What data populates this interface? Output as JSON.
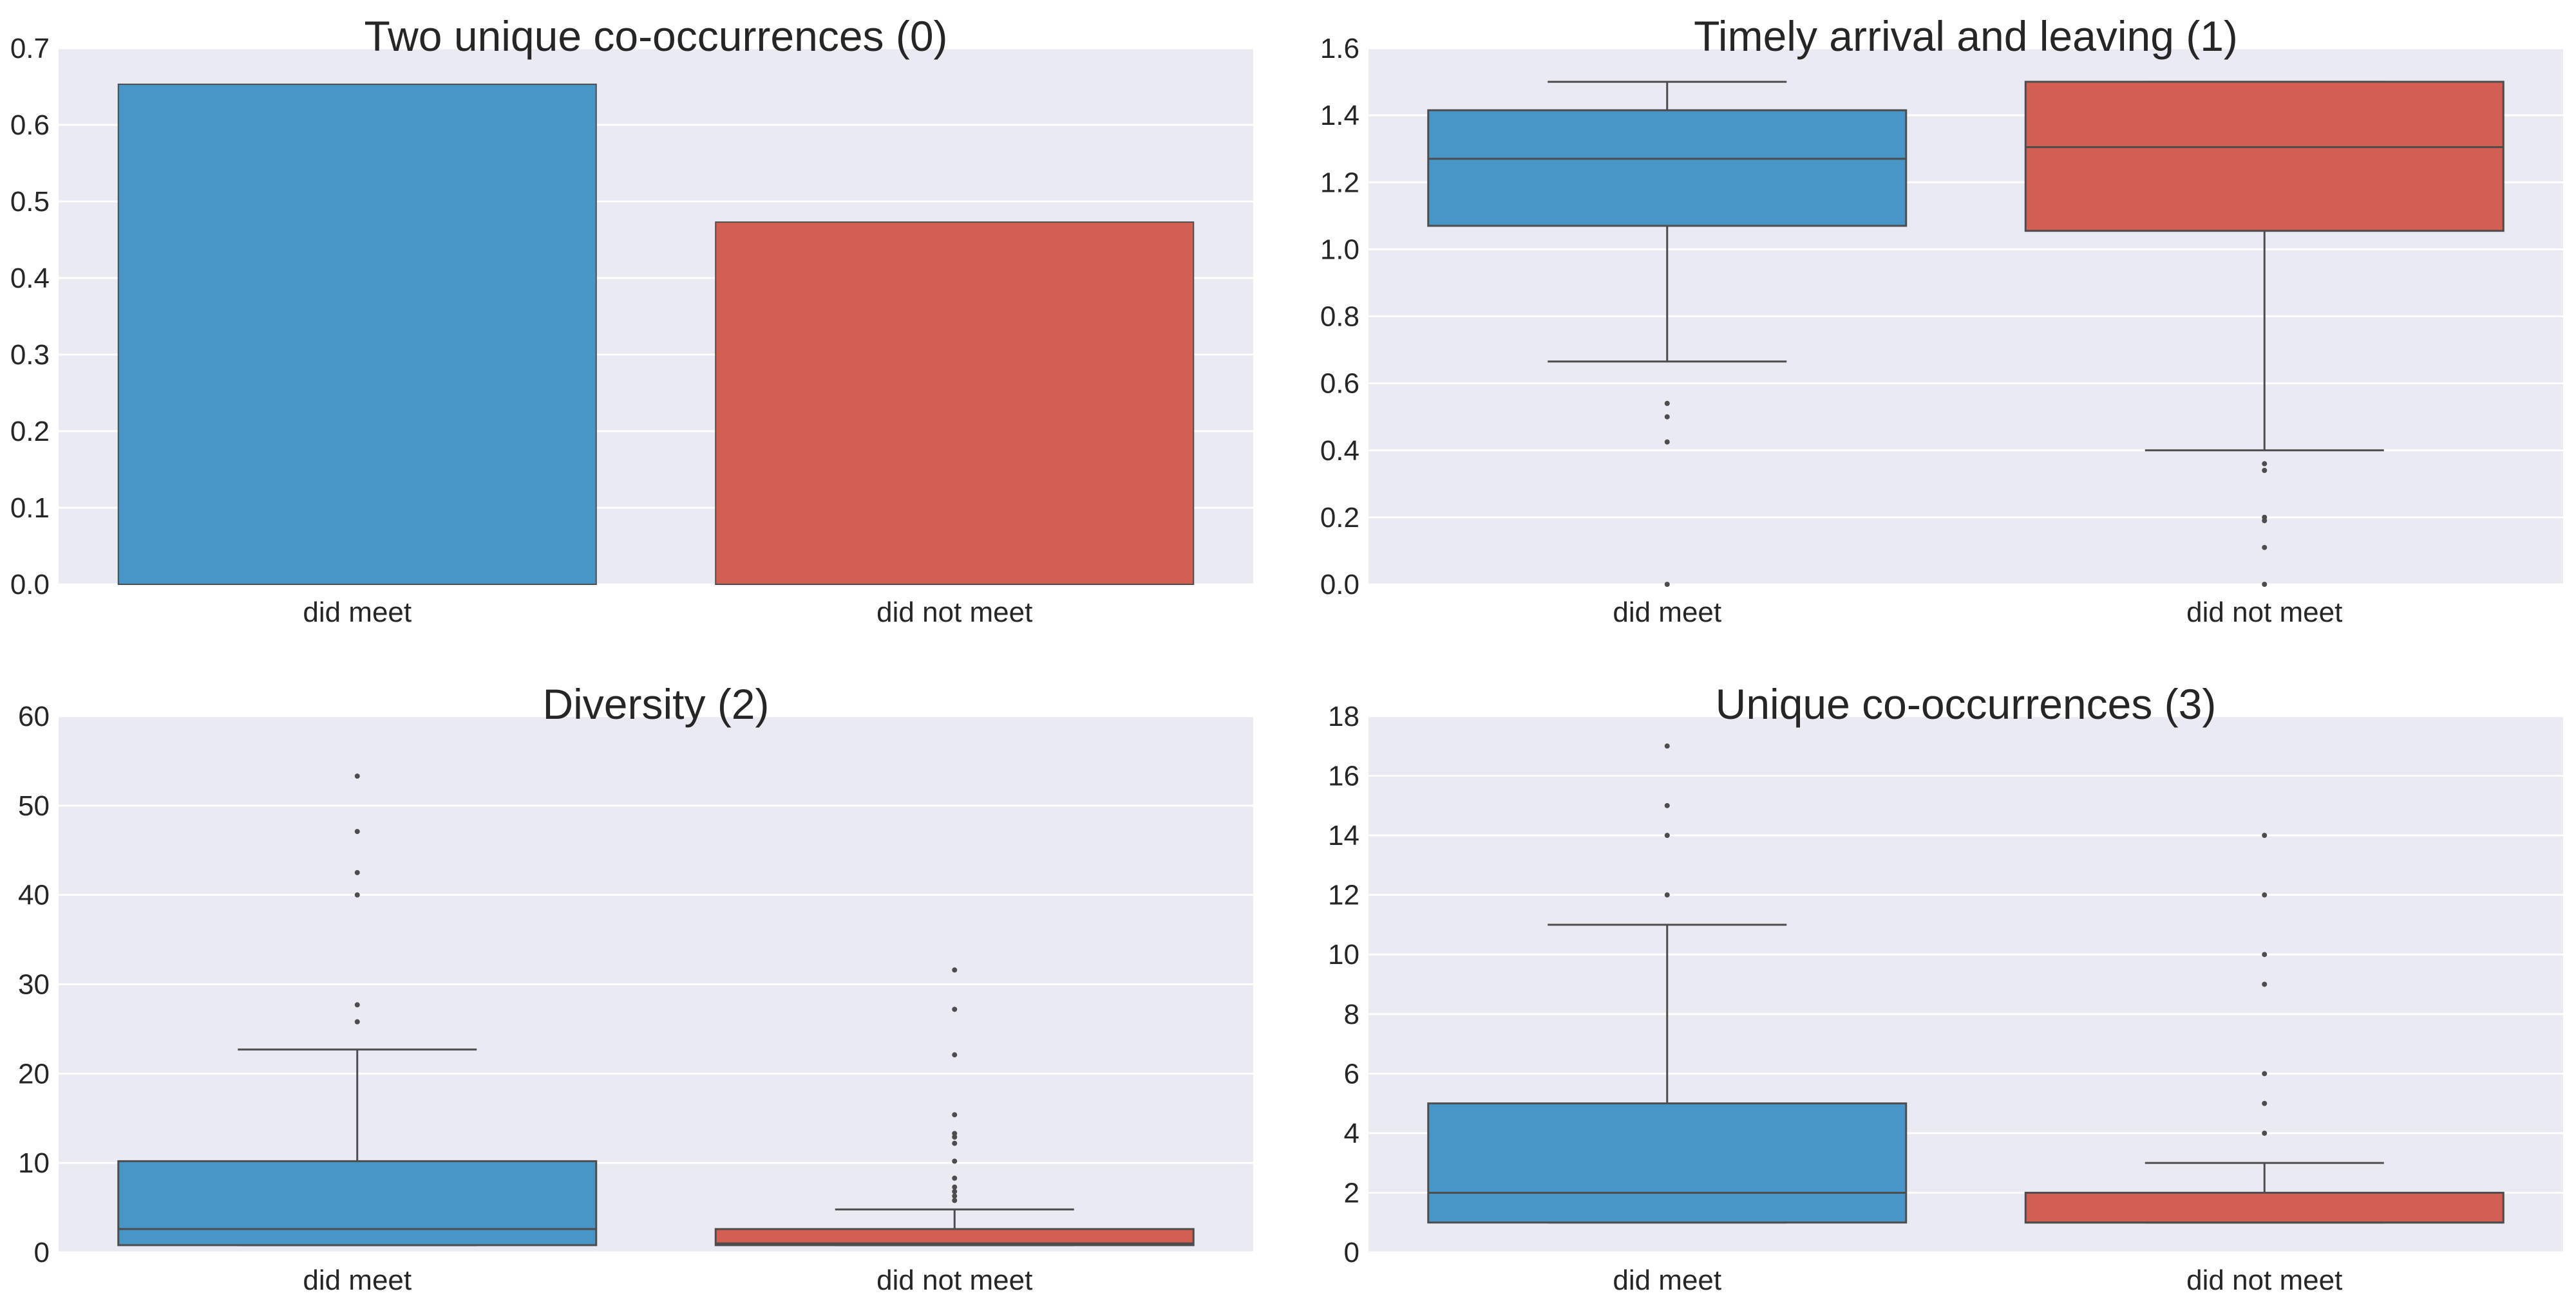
{
  "colors": {
    "did_meet": "#4896c8",
    "did_not_meet": "#d35e52",
    "panel_bg": "#eaeaf2",
    "line": "#4d4d4d"
  },
  "chart_data": [
    {
      "type": "bar",
      "title": "Two unique co-occurrences (0)",
      "categories": [
        "did meet",
        "did not meet"
      ],
      "values": [
        0.653,
        0.473
      ],
      "ylim": [
        0,
        0.7
      ],
      "yticks": [
        "0.0",
        "0.1",
        "0.2",
        "0.3",
        "0.4",
        "0.5",
        "0.6",
        "0.7"
      ],
      "grid": true
    },
    {
      "type": "box",
      "title": "Timely arrival and leaving (1)",
      "categories": [
        "did meet",
        "did not meet"
      ],
      "boxes": [
        {
          "whislo": 0.665,
          "q1": 1.07,
          "med": 1.27,
          "q3": 1.415,
          "whishi": 1.5,
          "fliers": [
            0.54,
            0.5,
            0.425,
            0.0
          ]
        },
        {
          "whislo": 0.4,
          "q1": 1.055,
          "med": 1.305,
          "q3": 1.5,
          "whishi": 1.5,
          "fliers": [
            0.36,
            0.34,
            0.2,
            0.19,
            0.11,
            0.0
          ]
        }
      ],
      "ylim": [
        0,
        1.6
      ],
      "yticks": [
        "0.0",
        "0.2",
        "0.4",
        "0.6",
        "0.8",
        "1.0",
        "1.2",
        "1.4",
        "1.6"
      ],
      "grid": true
    },
    {
      "type": "box",
      "title": "Diversity (2)",
      "categories": [
        "did meet",
        "did not meet"
      ],
      "boxes": [
        {
          "whislo": 0.8,
          "q1": 0.8,
          "med": 2.6,
          "q3": 10.2,
          "whishi": 22.7,
          "fliers": [
            25.8,
            27.7,
            40.0,
            42.5,
            47.1,
            53.3
          ]
        },
        {
          "whislo": 0.8,
          "q1": 0.8,
          "med": 1.0,
          "q3": 2.6,
          "whishi": 4.8,
          "fliers": [
            5.8,
            6.3,
            6.8,
            7.3,
            8.3,
            10.2,
            12.2,
            12.9,
            13.3,
            15.4,
            22.1,
            27.2,
            31.6
          ]
        }
      ],
      "ylim": [
        0,
        60
      ],
      "yticks": [
        "0",
        "10",
        "20",
        "30",
        "40",
        "50",
        "60"
      ],
      "grid": true
    },
    {
      "type": "box",
      "title": "Unique co-occurrences (3)",
      "categories": [
        "did meet",
        "did not meet"
      ],
      "boxes": [
        {
          "whislo": 1,
          "q1": 1,
          "med": 2,
          "q3": 5,
          "whishi": 11,
          "fliers": [
            12,
            14,
            15,
            17
          ]
        },
        {
          "whislo": 1,
          "q1": 1,
          "med": 1,
          "q3": 2,
          "whishi": 3,
          "fliers": [
            4,
            5,
            6,
            9,
            10,
            12,
            14
          ]
        }
      ],
      "ylim": [
        0,
        18
      ],
      "yticks": [
        "0",
        "2",
        "4",
        "6",
        "8",
        "10",
        "12",
        "14",
        "16",
        "18"
      ],
      "grid": true
    }
  ]
}
